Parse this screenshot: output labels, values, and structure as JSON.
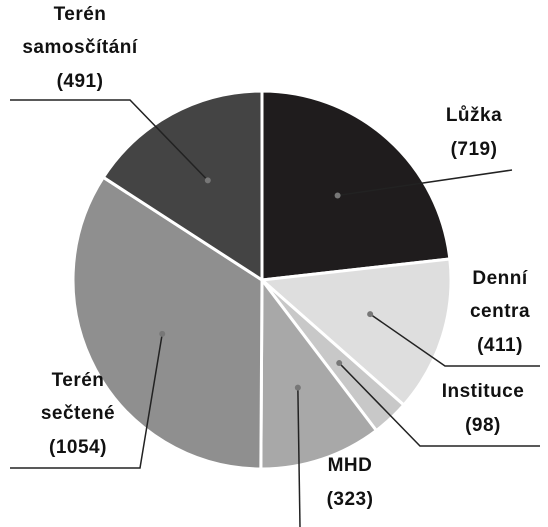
{
  "chart_data": {
    "type": "pie",
    "categories": [
      "Lůžka",
      "Denní centra",
      "Instituce",
      "MHD",
      "Terén sečtené",
      "Terén samosčítání"
    ],
    "values": [
      719,
      411,
      98,
      323,
      1054,
      491
    ],
    "value_labels": [
      "(719)",
      "(411)",
      "(98)",
      "(323)",
      "(1054)",
      "(491)"
    ],
    "colors": [
      "#1f1c1d",
      "#dedede",
      "#c8c8c8",
      "#a8a8a8",
      "#8f8f8f",
      "#444444"
    ]
  }
}
